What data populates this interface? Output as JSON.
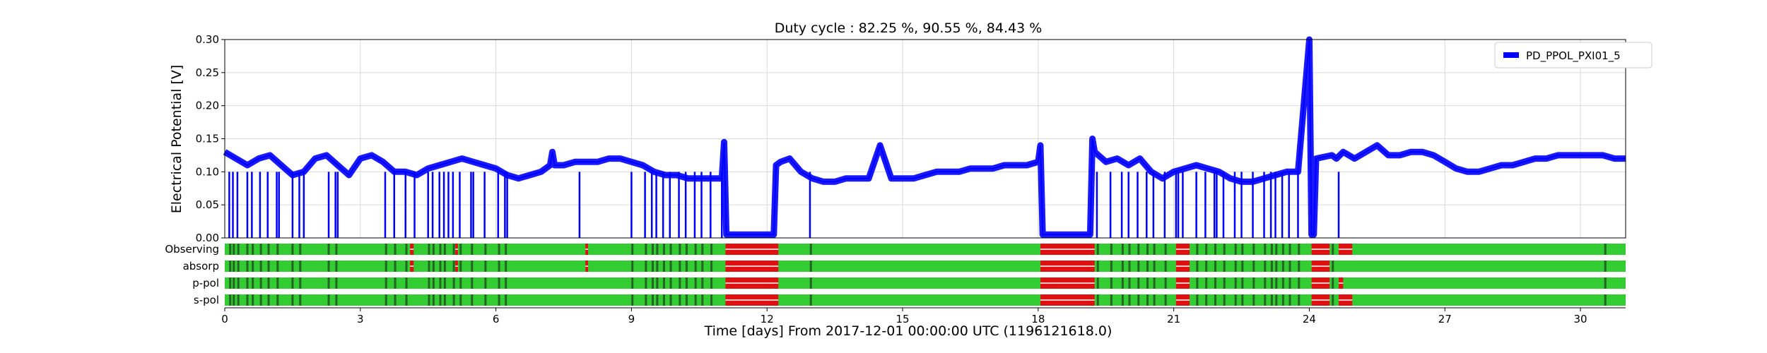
{
  "chart_data": {
    "type": "line",
    "title": "Duty cycle : 82.25 %, 90.55 %, 84.43 %",
    "xlabel": "Time [days] From 2017-12-01 00:00:00 UTC (1196121618.0)",
    "ylabel": "Electrical Potential [V]",
    "xlim": [
      0,
      31
    ],
    "ylim": [
      0,
      0.3
    ],
    "x_ticks": [
      0,
      3,
      6,
      9,
      12,
      15,
      18,
      21,
      24,
      27,
      30
    ],
    "x_tick_labels": [
      "0",
      "3",
      "6",
      "9",
      "12",
      "15",
      "18",
      "21",
      "24",
      "27",
      "30"
    ],
    "y_ticks": [
      0,
      0.05,
      0.1,
      0.15,
      0.2,
      0.25,
      0.3
    ],
    "y_tick_labels": [
      "0.00",
      "0.05",
      "0.10",
      "0.15",
      "0.20",
      "0.25",
      "0.30"
    ],
    "grid": true,
    "legend_position": "top-right",
    "line_color": "#0000ff",
    "series": [
      {
        "name": "PD_PPOL_PXI01_5",
        "x": [
          0.0,
          0.25,
          0.5,
          0.75,
          1.0,
          1.25,
          1.5,
          1.75,
          2.0,
          2.25,
          2.5,
          2.75,
          3.0,
          3.25,
          3.5,
          3.75,
          4.0,
          4.25,
          4.5,
          4.75,
          5.0,
          5.25,
          5.5,
          5.75,
          6.0,
          6.25,
          6.5,
          6.75,
          7.0,
          7.2,
          7.25,
          7.3,
          7.5,
          7.75,
          8.0,
          8.25,
          8.5,
          8.75,
          9.0,
          9.25,
          9.5,
          9.75,
          10.0,
          10.25,
          10.5,
          10.75,
          11.0,
          11.05,
          11.1,
          11.15,
          11.5,
          11.75,
          12.0,
          12.15,
          12.2,
          12.3,
          12.5,
          12.75,
          13.0,
          13.25,
          13.5,
          13.75,
          14.0,
          14.25,
          14.5,
          14.75,
          15.0,
          15.25,
          15.5,
          15.75,
          16.0,
          16.25,
          16.5,
          16.75,
          17.0,
          17.25,
          17.5,
          17.75,
          18.0,
          18.05,
          18.1,
          18.5,
          18.75,
          19.0,
          19.15,
          19.2,
          19.25,
          19.5,
          19.75,
          20.0,
          20.25,
          20.5,
          20.75,
          21.0,
          21.25,
          21.5,
          21.75,
          22.0,
          22.25,
          22.5,
          22.75,
          23.0,
          23.25,
          23.5,
          23.75,
          24.0,
          24.05,
          24.1,
          24.15,
          24.5,
          24.6,
          24.75,
          25.0,
          25.25,
          25.5,
          25.75,
          26.0,
          26.25,
          26.5,
          26.75,
          27.0,
          27.25,
          27.5,
          27.75,
          28.0,
          28.25,
          28.5,
          28.75,
          29.0,
          29.25,
          29.5,
          29.75,
          30.0,
          30.25,
          30.5,
          30.75,
          31.0
        ],
        "y": [
          0.13,
          0.12,
          0.11,
          0.12,
          0.125,
          0.11,
          0.095,
          0.1,
          0.12,
          0.125,
          0.11,
          0.095,
          0.12,
          0.125,
          0.115,
          0.1,
          0.1,
          0.095,
          0.105,
          0.11,
          0.115,
          0.12,
          0.115,
          0.11,
          0.105,
          0.095,
          0.09,
          0.095,
          0.1,
          0.11,
          0.13,
          0.11,
          0.11,
          0.115,
          0.115,
          0.115,
          0.12,
          0.12,
          0.115,
          0.11,
          0.1,
          0.095,
          0.095,
          0.09,
          0.09,
          0.09,
          0.09,
          0.145,
          0.005,
          0.005,
          0.005,
          0.005,
          0.005,
          0.005,
          0.11,
          0.115,
          0.12,
          0.1,
          0.09,
          0.085,
          0.085,
          0.09,
          0.09,
          0.09,
          0.14,
          0.09,
          0.09,
          0.09,
          0.095,
          0.1,
          0.1,
          0.1,
          0.105,
          0.105,
          0.105,
          0.11,
          0.11,
          0.11,
          0.115,
          0.14,
          0.005,
          0.005,
          0.005,
          0.005,
          0.005,
          0.15,
          0.13,
          0.115,
          0.12,
          0.11,
          0.12,
          0.1,
          0.09,
          0.1,
          0.105,
          0.11,
          0.105,
          0.1,
          0.09,
          0.085,
          0.085,
          0.09,
          0.095,
          0.1,
          0.1,
          0.3,
          0.005,
          0.005,
          0.12,
          0.125,
          0.12,
          0.13,
          0.12,
          0.13,
          0.14,
          0.125,
          0.125,
          0.13,
          0.13,
          0.125,
          0.115,
          0.105,
          0.1,
          0.1,
          0.105,
          0.11,
          0.11,
          0.115,
          0.12,
          0.12,
          0.125,
          0.125,
          0.125,
          0.125,
          0.125,
          0.12,
          0.12
        ]
      }
    ],
    "dropouts": [
      0.1,
      0.18,
      0.28,
      0.5,
      0.6,
      0.78,
      0.95,
      1.15,
      1.2,
      1.5,
      1.65,
      1.75,
      2.3,
      2.45,
      2.5,
      3.55,
      3.75,
      4.0,
      4.2,
      4.5,
      4.6,
      4.75,
      4.85,
      4.95,
      5.05,
      5.2,
      5.45,
      5.5,
      5.75,
      6.05,
      6.2,
      6.25,
      7.85,
      9.0,
      9.3,
      9.45,
      9.55,
      9.7,
      9.85,
      10.05,
      10.2,
      10.4,
      10.55,
      10.75,
      11.0,
      12.95,
      19.3,
      19.6,
      19.85,
      20.0,
      20.2,
      20.4,
      20.55,
      20.8,
      21.05,
      21.1,
      21.2,
      21.5,
      21.7,
      21.9,
      21.95,
      22.1,
      22.35,
      22.5,
      22.75,
      23.0,
      23.15,
      23.25,
      23.4,
      23.55,
      23.75,
      24.65
    ],
    "state_bars": {
      "labels": [
        "Observing",
        "absorp",
        "p-pol",
        "s-pol"
      ],
      "colors": {
        "active": "#33cc33",
        "dark": "#226622",
        "off": "#dd1111"
      },
      "off_segments": [
        [
          [
            4.1,
            4.18
          ],
          [
            5.1,
            5.16
          ],
          [
            7.98,
            8.04
          ],
          [
            11.08,
            12.25
          ],
          [
            18.05,
            19.25
          ],
          [
            21.05,
            21.35
          ],
          [
            24.05,
            24.45
          ],
          [
            24.65,
            24.95
          ]
        ],
        [
          [
            4.1,
            4.18
          ],
          [
            5.1,
            5.16
          ],
          [
            7.98,
            8.04
          ],
          [
            11.08,
            12.25
          ],
          [
            18.05,
            19.25
          ],
          [
            21.05,
            21.35
          ],
          [
            24.05,
            24.45
          ]
        ],
        [
          [
            11.08,
            12.25
          ],
          [
            18.05,
            19.25
          ],
          [
            21.05,
            21.35
          ],
          [
            24.05,
            24.45
          ],
          [
            24.65,
            24.75
          ]
        ],
        [
          [
            11.08,
            12.25
          ],
          [
            18.05,
            19.25
          ],
          [
            21.05,
            21.35
          ],
          [
            24.05,
            24.45
          ],
          [
            24.65,
            24.95
          ]
        ]
      ],
      "dark_marks": [
        0.12,
        0.2,
        0.3,
        0.5,
        0.62,
        0.8,
        0.97,
        1.17,
        1.5,
        1.67,
        2.3,
        2.47,
        3.57,
        3.77,
        4.02,
        4.52,
        4.62,
        4.77,
        4.87,
        5.07,
        5.22,
        5.47,
        5.77,
        6.07,
        6.22,
        9.02,
        9.32,
        9.47,
        9.57,
        9.72,
        9.87,
        10.07,
        10.22,
        10.42,
        10.57,
        10.77,
        12.97,
        19.32,
        19.62,
        19.87,
        20.02,
        20.22,
        20.42,
        20.57,
        20.82,
        21.52,
        21.72,
        21.92,
        22.12,
        22.37,
        22.52,
        22.77,
        23.02,
        23.17,
        23.27,
        23.42,
        23.57,
        23.77,
        24.52,
        30.55
      ]
    }
  }
}
